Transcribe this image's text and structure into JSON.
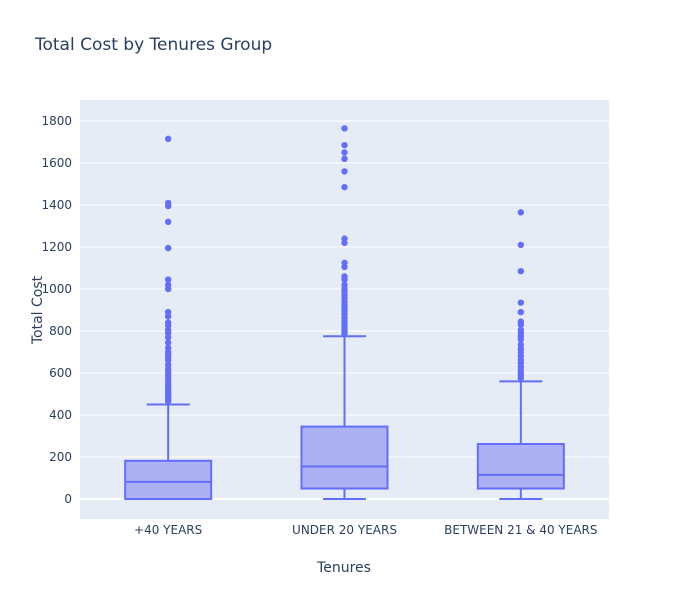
{
  "chart_data": {
    "type": "box",
    "title": "Total Cost by Tenures Group",
    "xlabel": "Tenures",
    "ylabel": "Total Cost",
    "ylim": [
      -95,
      1900
    ],
    "yticks": [
      0,
      200,
      400,
      600,
      800,
      1000,
      1200,
      1400,
      1600,
      1800
    ],
    "grid": true,
    "legend": "none",
    "colors": {
      "plot_bg": "#E5ECF6",
      "box_line": "#636EFA",
      "box_fill": "#A5ABF4",
      "text": "#2a3f5f",
      "grid": "#ffffff"
    },
    "categories": [
      "+40 YEARS",
      "UNDER 20 YEARS",
      "BETWEEN 21 & 40 YEARS"
    ],
    "boxes": [
      {
        "category": "+40 YEARS",
        "min": 0,
        "q1": 0,
        "median": 82,
        "q3": 182,
        "whisker_high": 450,
        "outliers": [
          465,
          470,
          478,
          488,
          495,
          505,
          515,
          525,
          535,
          548,
          560,
          575,
          590,
          605,
          620,
          640,
          660,
          675,
          690,
          700,
          720,
          745,
          770,
          790,
          805,
          825,
          840,
          870,
          890,
          1000,
          1020,
          1045,
          1195,
          1320,
          1395,
          1410,
          1715
        ]
      },
      {
        "category": "UNDER 20 YEARS",
        "min": 0,
        "q1": 50,
        "median": 155,
        "q3": 345,
        "whisker_high": 775,
        "outliers": [
          785,
          795,
          805,
          818,
          832,
          848,
          862,
          878,
          895,
          910,
          925,
          942,
          958,
          972,
          988,
          1002,
          1020,
          1045,
          1060,
          1105,
          1125,
          1220,
          1240,
          1485,
          1560,
          1620,
          1650,
          1685,
          1765
        ]
      },
      {
        "category": "BETWEEN 21 & 40 YEARS",
        "min": 0,
        "q1": 50,
        "median": 115,
        "q3": 262,
        "whisker_high": 560,
        "outliers": [
          575,
          588,
          600,
          615,
          630,
          648,
          662,
          680,
          698,
          715,
          735,
          760,
          775,
          790,
          805,
          830,
          845,
          890,
          935,
          1085,
          1210,
          1365
        ]
      }
    ]
  }
}
